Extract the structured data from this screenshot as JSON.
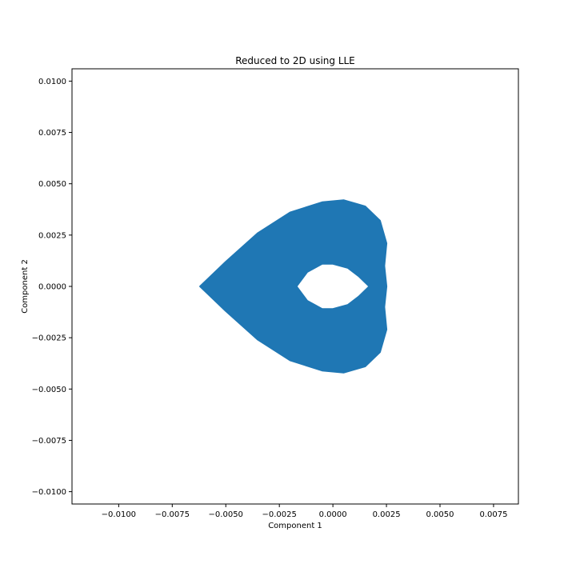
{
  "chart_data": {
    "type": "scatter",
    "title": "Reduced to 2D using LLE",
    "xlabel": "Component 1",
    "ylabel": "Component 2",
    "xlim": [
      -0.01218,
      0.00866
    ],
    "ylim": [
      -0.0106,
      0.0106
    ],
    "xticks": [
      -0.01,
      -0.0075,
      -0.005,
      -0.0025,
      0.0,
      0.0025,
      0.005,
      0.0075
    ],
    "xtick_labels": [
      "−0.0100",
      "−0.0075",
      "−0.0050",
      "−0.0025",
      "0.0000",
      "0.0025",
      "0.0050",
      "0.0075"
    ],
    "yticks": [
      0.01,
      0.0075,
      0.005,
      0.0025,
      0.0,
      -0.0025,
      -0.005,
      -0.0075,
      -0.01
    ],
    "ytick_labels": [
      "0.0100",
      "0.0075",
      "0.0050",
      "0.0025",
      "0.0000",
      "−0.0025",
      "−0.0050",
      "−0.0075",
      "−0.0100"
    ],
    "grid": false,
    "series": [
      {
        "color": "#1f77b4",
        "outer_boundary": [
          [
            -0.0062,
            0.0
          ],
          [
            -0.005,
            0.0012
          ],
          [
            -0.0035,
            0.0026
          ],
          [
            -0.002,
            0.0036
          ],
          [
            -0.0005,
            0.0041
          ],
          [
            0.0005,
            0.0042
          ],
          [
            0.0015,
            0.0039
          ],
          [
            0.0022,
            0.0032
          ],
          [
            0.0025,
            0.0021
          ],
          [
            0.0024,
            0.001
          ],
          [
            0.0025,
            0.0
          ],
          [
            0.0024,
            -0.001
          ],
          [
            0.0025,
            -0.0021
          ],
          [
            0.0022,
            -0.0032
          ],
          [
            0.0015,
            -0.0039
          ],
          [
            0.0005,
            -0.0042
          ],
          [
            -0.0005,
            -0.0041
          ],
          [
            -0.002,
            -0.0036
          ],
          [
            -0.0035,
            -0.0026
          ],
          [
            -0.005,
            -0.0012
          ]
        ],
        "inner_hole": [
          [
            -0.0017,
            0.0
          ],
          [
            -0.0012,
            0.0007
          ],
          [
            -0.0005,
            0.0011
          ],
          [
            0.0,
            0.0011
          ],
          [
            0.0007,
            0.0009
          ],
          [
            0.0012,
            0.0005
          ],
          [
            0.0017,
            0.0
          ],
          [
            0.0012,
            -0.0005
          ],
          [
            0.0007,
            -0.0009
          ],
          [
            0.0,
            -0.0011
          ],
          [
            -0.0005,
            -0.0011
          ],
          [
            -0.0012,
            -0.0007
          ]
        ]
      }
    ]
  }
}
